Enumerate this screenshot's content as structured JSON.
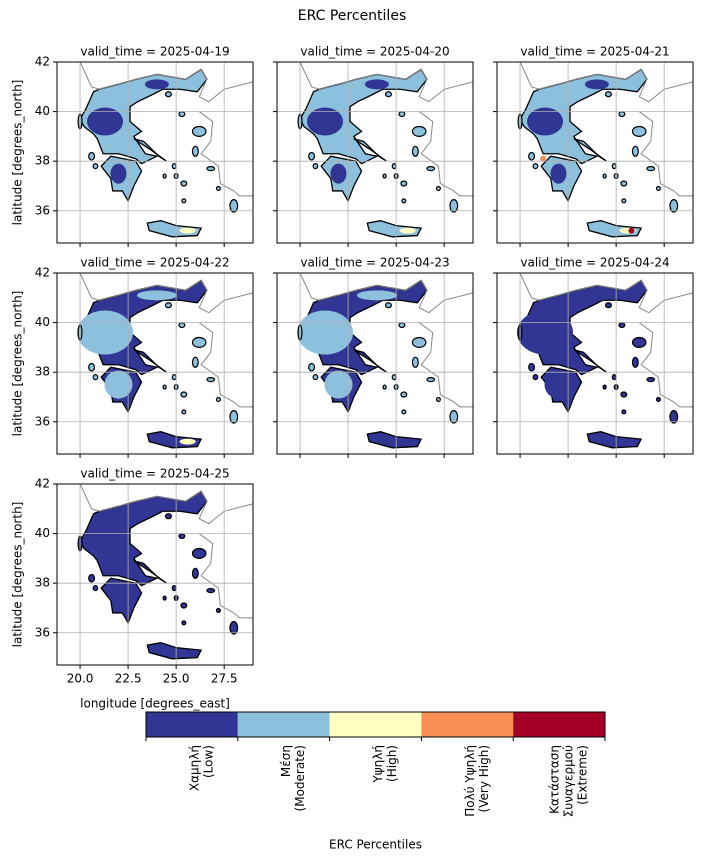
{
  "chart_data": {
    "type": "map",
    "title": "ERC Percentiles",
    "panels": [
      "valid_time = 2025-04-19",
      "valid_time = 2025-04-20",
      "valid_time = 2025-04-21",
      "valid_time = 2025-04-22",
      "valid_time = 2025-04-23",
      "valid_time = 2025-04-24",
      "valid_time = 2025-04-25"
    ],
    "xlabel": "longitude [degrees_east]",
    "ylabel": "latitude [degrees_north]",
    "xlim": [
      18.8,
      29.0
    ],
    "ylim": [
      34.7,
      42.0
    ],
    "xticks": [
      {
        "value": 20,
        "label": "20.0"
      },
      {
        "value": 22.5,
        "label": "22.5"
      },
      {
        "value": 25,
        "label": "25.0"
      },
      {
        "value": 27.5,
        "label": "27.5"
      }
    ],
    "yticks": [
      36,
      38,
      40,
      42
    ],
    "grid": true,
    "colorbar": {
      "label": "ERC Percentiles",
      "categories": [
        [
          "Χαμηλή",
          "(Low)"
        ],
        [
          "Μέση",
          "(Moderate)"
        ],
        [
          "Υψηλή",
          "(High)"
        ],
        [
          "Πολύ Υψηλή",
          "(Very High)"
        ],
        [
          "Κατάσταση",
          "Συναγερμού",
          "(Extreme)"
        ]
      ],
      "colors": [
        "#313695",
        "#8cc0dd",
        "#ffffbf",
        "#f98e52",
        "#a50026"
      ]
    }
  }
}
